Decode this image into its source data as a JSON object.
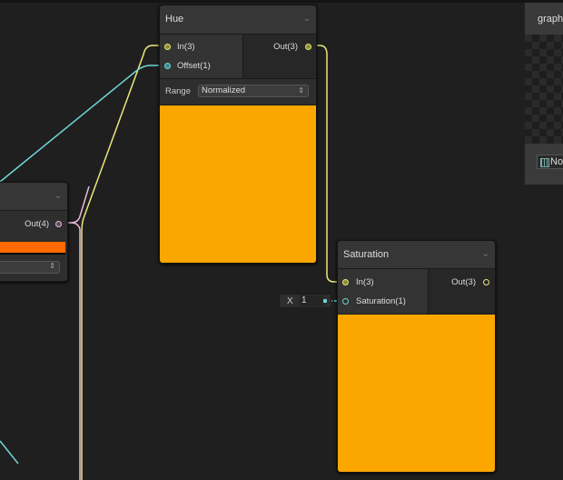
{
  "colors": {
    "preview": "#fca600",
    "left_swatch": "#ff6a00",
    "wire_yellow": "#e8e87a",
    "wire_cyan": "#6fd6d6",
    "wire_pink": "#e8b8d8"
  },
  "left_node": {
    "output": "Out(4)"
  },
  "hue_node": {
    "title": "Hue",
    "inputs": [
      "In(3)",
      "Offset(1)"
    ],
    "output": "Out(3)",
    "range_label": "Range",
    "range_value": "Normalized"
  },
  "saturation_node": {
    "title": "Saturation",
    "inputs": [
      "In(3)",
      "Saturation(1)"
    ],
    "output": "Out(3)"
  },
  "saturation_input": {
    "label": "X",
    "value": "1"
  },
  "graph_panel": {
    "title": "graph",
    "button": "No"
  }
}
